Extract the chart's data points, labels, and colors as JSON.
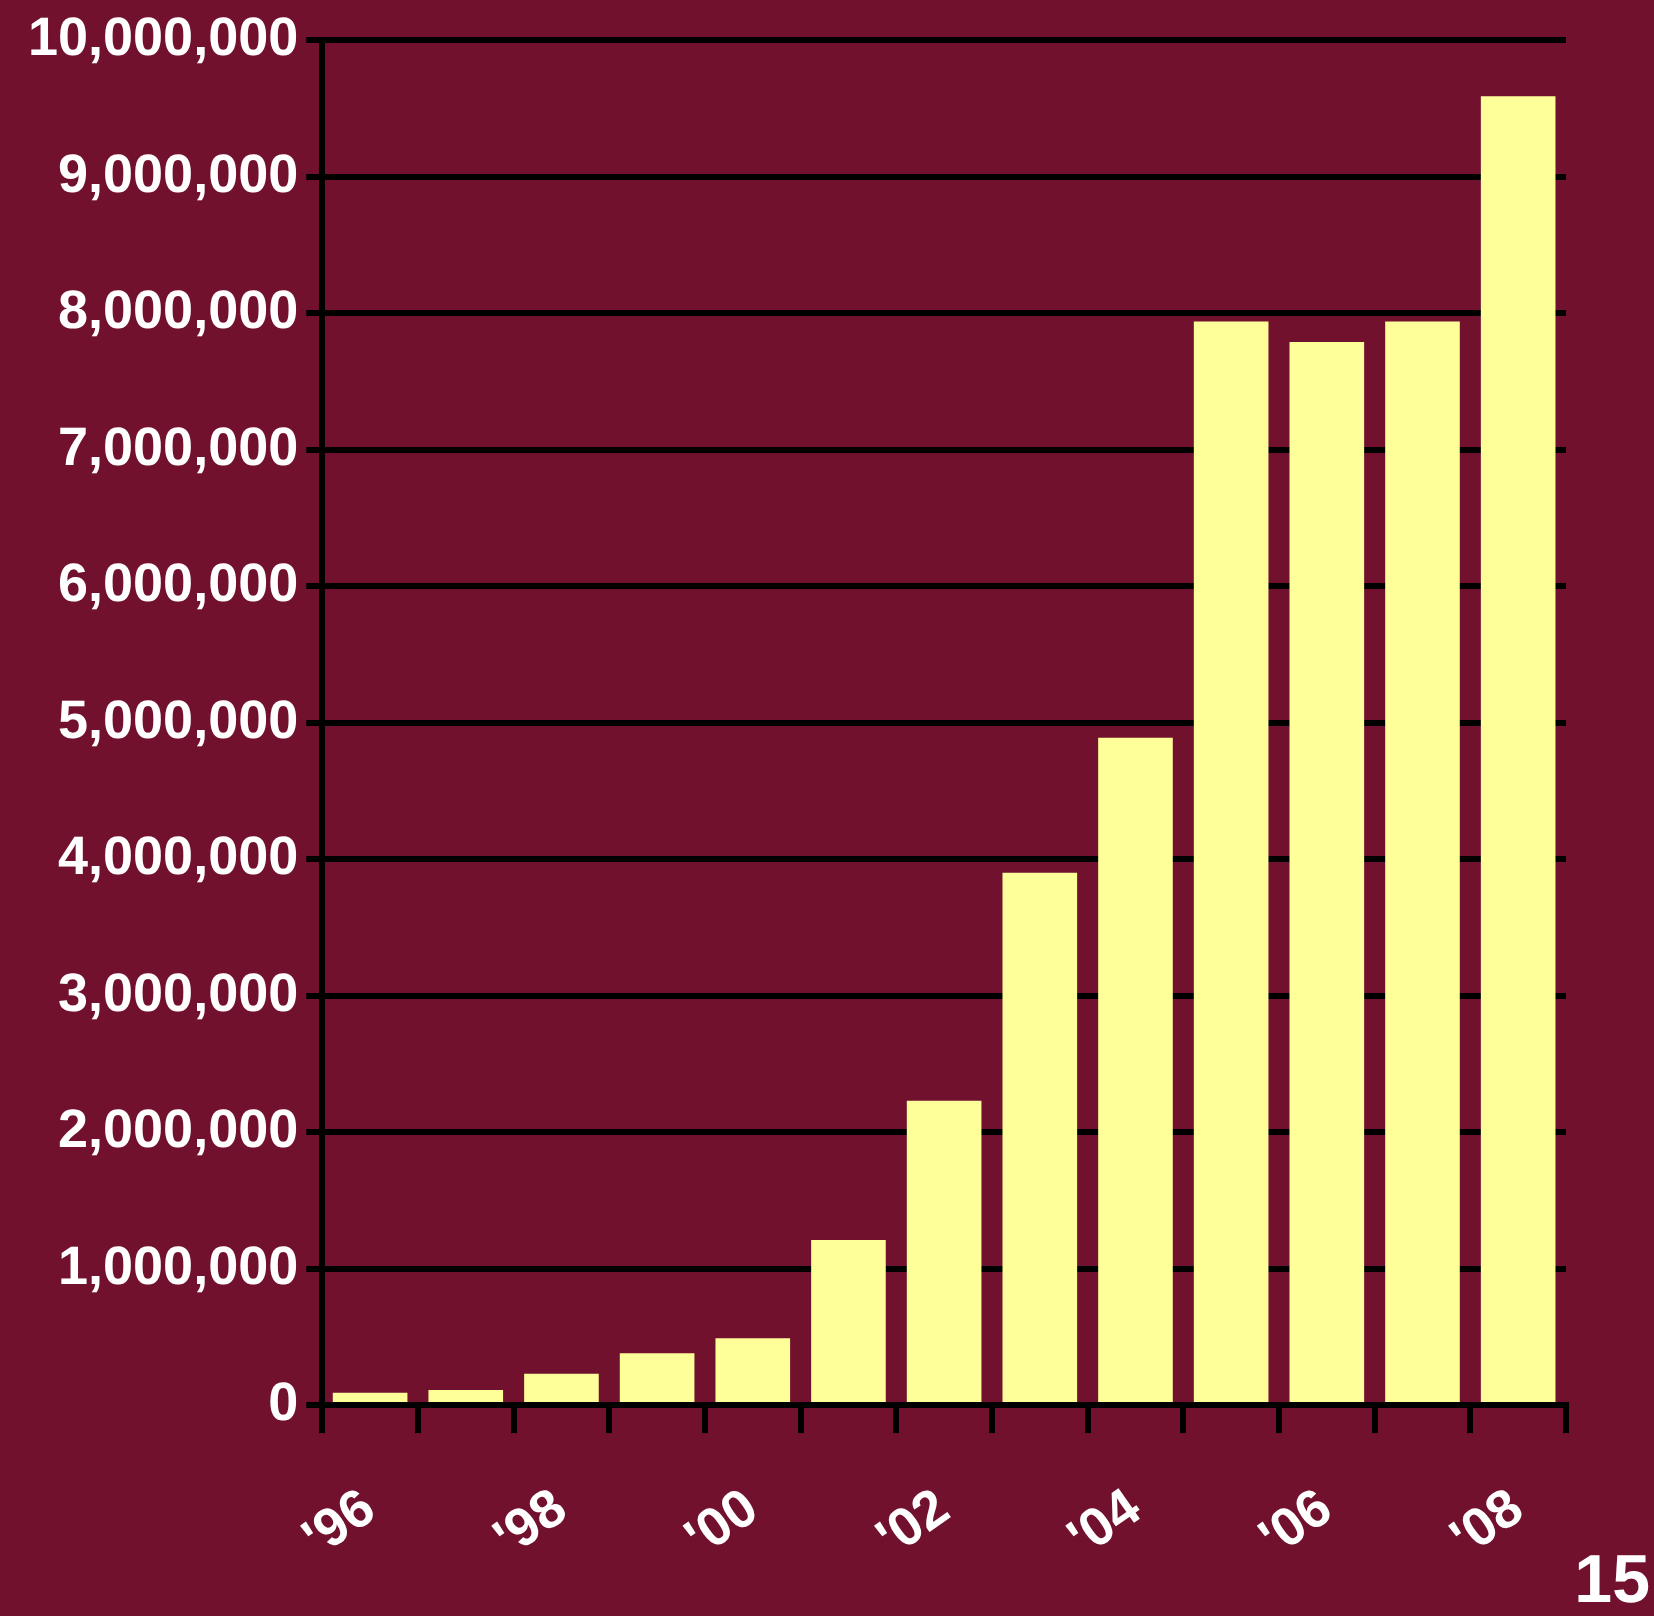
{
  "chart_data": {
    "type": "bar",
    "categories": [
      "'96",
      null,
      "'98",
      null,
      "'00",
      null,
      "'02",
      null,
      "'04",
      null,
      "'06",
      null,
      "'08"
    ],
    "values": [
      90000,
      110000,
      230000,
      380000,
      490000,
      1210000,
      2230000,
      3900000,
      4890000,
      7940000,
      7790000,
      7940000,
      9590000
    ],
    "color": "#ffff99",
    "ylim": [
      0,
      10000000
    ],
    "yticks": [
      {
        "value": 0,
        "label": "0"
      },
      {
        "value": 1000000,
        "label": "1,000,000"
      },
      {
        "value": 2000000,
        "label": "2,000,000"
      },
      {
        "value": 3000000,
        "label": "3,000,000"
      },
      {
        "value": 4000000,
        "label": "4,000,000"
      },
      {
        "value": 5000000,
        "label": "5,000,000"
      },
      {
        "value": 6000000,
        "label": "6,000,000"
      },
      {
        "value": 7000000,
        "label": "7,000,000"
      },
      {
        "value": 8000000,
        "label": "8,000,000"
      },
      {
        "value": 9000000,
        "label": "9,000,000"
      },
      {
        "value": 10000000,
        "label": "10,000,000"
      }
    ],
    "grid": "y",
    "legend": false,
    "annotations": [
      "15"
    ]
  }
}
